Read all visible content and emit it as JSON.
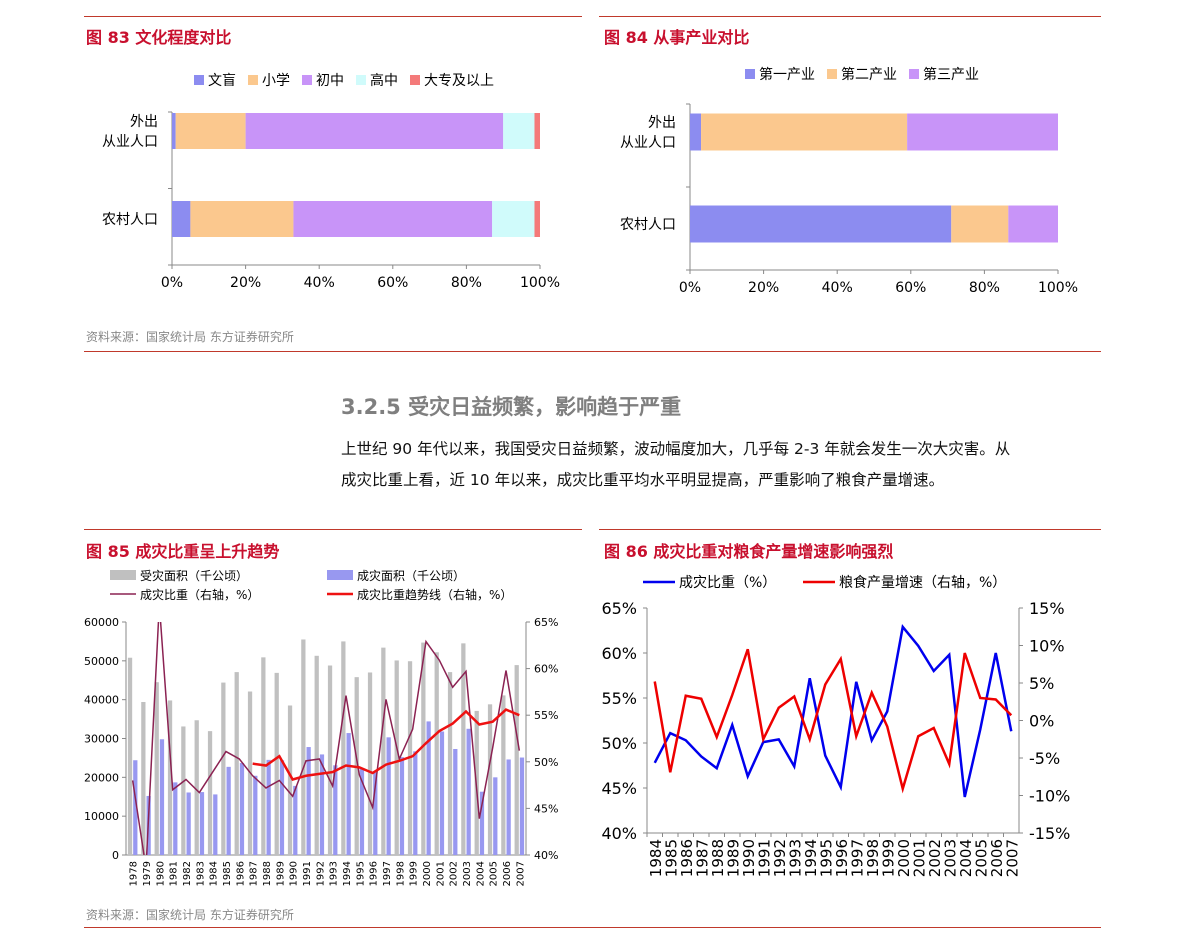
{
  "colors": {
    "accent": "#c8102e",
    "rule": "#c0392b",
    "grey_text": "#888888",
    "heading_grey": "#7f7f7f",
    "edu": [
      "#8c8cf0",
      "#fbc88e",
      "#c894f8",
      "#d0fbfb",
      "#f47a7a"
    ],
    "ind": [
      "#8c8cf0",
      "#fbc88e",
      "#c894f8"
    ],
    "area": "#c0c0c0",
    "damage": "#9898f0",
    "ratio_line": "#8b2252",
    "trend_line": "#ee1111",
    "blue_line": "#0000ee",
    "red_line": "#ee0000"
  },
  "fig83": {
    "title": "图 83  文化程度对比",
    "source": "资料来源：国家统计局  东方证券研究所",
    "chart_data": {
      "type": "bar",
      "orientation": "horizontal-stacked-percent",
      "categories": [
        "外出\n从业人口",
        "农村人口"
      ],
      "series": [
        {
          "name": "文盲",
          "values": [
            1,
            5
          ]
        },
        {
          "name": "小学",
          "values": [
            19,
            28
          ]
        },
        {
          "name": "初中",
          "values": [
            70,
            54
          ]
        },
        {
          "name": "高中",
          "values": [
            8.5,
            11.5
          ]
        },
        {
          "name": "大专及以上",
          "values": [
            1.5,
            1.5
          ]
        }
      ],
      "xlim": [
        0,
        100
      ],
      "xticks": [
        "0%",
        "20%",
        "40%",
        "60%",
        "80%",
        "100%"
      ],
      "legend": "top"
    }
  },
  "fig84": {
    "title": "图 84  从事产业对比",
    "chart_data": {
      "type": "bar",
      "orientation": "horizontal-stacked-percent",
      "categories": [
        "外出\n从业人口",
        "农村人口"
      ],
      "series": [
        {
          "name": "第一产业",
          "values": [
            3,
            71
          ]
        },
        {
          "name": "第二产业",
          "values": [
            56,
            15.5
          ]
        },
        {
          "name": "第三产业",
          "values": [
            41,
            13.5
          ]
        }
      ],
      "xlim": [
        0,
        100
      ],
      "xticks": [
        "0%",
        "20%",
        "40%",
        "60%",
        "80%",
        "100%"
      ],
      "legend": "top"
    }
  },
  "section": {
    "heading": "3.2.5  受灾日益频繁，影响趋于严重",
    "lines": [
      "上世纪 90 年代以来，我国受灾日益频繁，波动幅度加大，几乎每 2-3 年就会发生一次大灾害。从",
      "成灾比重上看，近 10 年以来，成灾比重平均水平明显提高，严重影响了粮食产量增速。"
    ]
  },
  "fig85": {
    "title": "图 85  成灾比重呈上升趋势",
    "source": "资料来源：国家统计局  东方证券研究所",
    "chart_data": {
      "type": "bar",
      "categories": [
        "1978",
        "1979",
        "1980",
        "1981",
        "1982",
        "1983",
        "1984",
        "1985",
        "1986",
        "1987",
        "1988",
        "1989",
        "1990",
        "1991",
        "1992",
        "1993",
        "1994",
        "1995",
        "1996",
        "1997",
        "1998",
        "1999",
        "2000",
        "2001",
        "2002",
        "2003",
        "2004",
        "2005",
        "2006",
        "2007"
      ],
      "series": [
        {
          "name": "受灾面积（千公顷）",
          "axis": "left",
          "kind": "bar",
          "values": [
            50800,
            39400,
            44500,
            39800,
            33100,
            34700,
            31900,
            44400,
            47100,
            42100,
            50900,
            46900,
            38500,
            55500,
            51300,
            48800,
            55000,
            45800,
            47000,
            53400,
            50100,
            49900,
            54700,
            52200,
            47100,
            54500,
            37100,
            38800,
            41100,
            48900
          ]
        },
        {
          "name": "成灾面积（千公顷）",
          "axis": "left",
          "kind": "bar",
          "values": [
            24400,
            15200,
            29800,
            18700,
            16100,
            16200,
            15600,
            22700,
            23700,
            20400,
            24500,
            24400,
            17800,
            27800,
            25900,
            23100,
            31400,
            22300,
            21200,
            30300,
            25200,
            26700,
            34400,
            31800,
            27300,
            32500,
            16300,
            20000,
            24600,
            25100
          ]
        },
        {
          "name": "成灾比重（右轴，%）",
          "axis": "right",
          "kind": "line",
          "values": [
            48,
            38.6,
            66.9,
            47,
            48.1,
            46.7,
            48.9,
            51.1,
            50.3,
            48.5,
            47.2,
            48,
            46.3,
            50.1,
            50.3,
            47.4,
            57.1,
            48.6,
            45.1,
            56.7,
            50.3,
            53.5,
            62.9,
            60.9,
            58,
            59.7,
            43.9,
            51.5,
            59.8,
            51.2
          ]
        },
        {
          "name": "成灾比重趋势线（右轴，%）",
          "axis": "right",
          "kind": "line",
          "values": [
            null,
            null,
            null,
            null,
            null,
            null,
            null,
            null,
            null,
            49.8,
            49.6,
            50.6,
            48.1,
            48.5,
            48.7,
            48.9,
            49.6,
            49.4,
            48.8,
            49.7,
            50.1,
            50.6,
            52,
            53.3,
            54.1,
            55.4,
            54,
            54.3,
            55.6,
            55
          ]
        }
      ],
      "left_ylim": [
        0,
        60000
      ],
      "left_yticks": [
        "0",
        "10000",
        "20000",
        "30000",
        "40000",
        "50000",
        "60000"
      ],
      "right_ylim": [
        40,
        65
      ],
      "right_yticks": [
        "40%",
        "45%",
        "50%",
        "55%",
        "60%",
        "65%"
      ],
      "legend": "top, two columns"
    }
  },
  "fig86": {
    "title": "图 86  成灾比重对粮食产量增速影响强烈",
    "chart_data": {
      "type": "line",
      "x": [
        "1984",
        "1985",
        "1986",
        "1987",
        "1988",
        "1989",
        "1990",
        "1991",
        "1992",
        "1993",
        "1994",
        "1995",
        "1996",
        "1997",
        "1998",
        "1999",
        "2000",
        "2001",
        "2002",
        "2003",
        "2004",
        "2005",
        "2006",
        "2007"
      ],
      "series": [
        {
          "name": "成灾比重（%）",
          "axis": "left",
          "values": [
            47.8,
            51.1,
            50.3,
            48.5,
            47.2,
            52,
            46.3,
            50.1,
            50.4,
            47.4,
            57.2,
            48.6,
            45.1,
            56.8,
            50.3,
            53.5,
            62.9,
            60.8,
            58,
            59.8,
            44,
            51.5,
            60,
            51.3
          ]
        },
        {
          "name": "粮食产量增速（右轴，%）",
          "axis": "right",
          "values": [
            5.2,
            -6.9,
            3.3,
            2.9,
            -2.2,
            3.4,
            9.5,
            -2.5,
            1.7,
            3.2,
            -2.5,
            4.8,
            8.2,
            -2.1,
            3.7,
            -0.8,
            -9.1,
            -2.1,
            -1,
            -5.8,
            9,
            3,
            2.8,
            0.7
          ]
        }
      ],
      "left_ylim": [
        40,
        65
      ],
      "left_yticks": [
        "40%",
        "45%",
        "50%",
        "55%",
        "60%",
        "65%"
      ],
      "right_ylim": [
        -15,
        15
      ],
      "right_yticks": [
        "-15%",
        "-10%",
        "-5%",
        "0%",
        "5%",
        "10%",
        "15%"
      ],
      "legend": "top"
    }
  }
}
